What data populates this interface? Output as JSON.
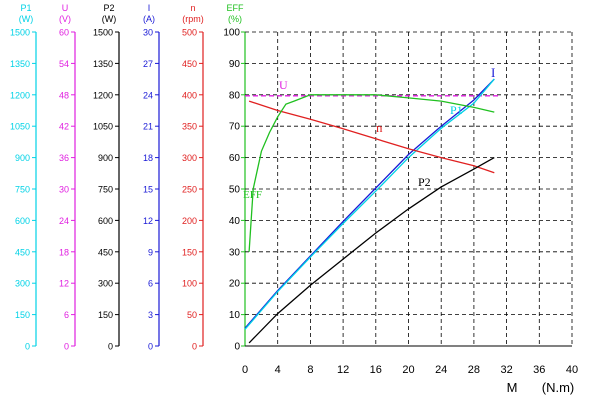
{
  "chart_data": {
    "type": "line",
    "title": "",
    "xlabel": "M",
    "xunit": "(N.m)",
    "x_ticks": [
      0,
      4,
      8,
      12,
      16,
      20,
      24,
      28,
      32,
      36,
      40
    ],
    "xlim": [
      0,
      40
    ],
    "grid": true,
    "axes": [
      {
        "key": "P1",
        "name": "P1",
        "unit": "(W)",
        "color": "#00d2e6",
        "min": 0,
        "max": 1500,
        "ticks": [
          0,
          150,
          300,
          450,
          600,
          750,
          900,
          1050,
          1200,
          1350,
          1500
        ]
      },
      {
        "key": "U",
        "name": "U",
        "unit": "(V)",
        "color": "#e020e0",
        "min": 0,
        "max": 60,
        "ticks": [
          0,
          6,
          12,
          18,
          24,
          30,
          36,
          42,
          48,
          54,
          60
        ]
      },
      {
        "key": "P2",
        "name": "P2",
        "unit": "(W)",
        "color": "#000000",
        "min": 0,
        "max": 1500,
        "ticks": [
          0,
          150,
          300,
          450,
          600,
          750,
          900,
          1050,
          1200,
          1350,
          1500
        ]
      },
      {
        "key": "I",
        "name": "I",
        "unit": "(A)",
        "color": "#1a1ad6",
        "min": 0,
        "max": 30,
        "ticks": [
          0,
          3,
          6,
          9,
          12,
          15,
          18,
          21,
          24,
          27,
          30
        ]
      },
      {
        "key": "n",
        "name": "n",
        "unit": "(rpm)",
        "color": "#e02020",
        "min": 0,
        "max": 500,
        "ticks": [
          0,
          50,
          100,
          150,
          200,
          250,
          300,
          350,
          400,
          450,
          500
        ]
      },
      {
        "key": "EFF",
        "name": "EFF",
        "unit": "(%)",
        "color": "#20c020",
        "min": 0,
        "max": 100,
        "ticks": [
          0,
          10,
          20,
          30,
          40,
          50,
          60,
          70,
          80,
          90,
          100
        ]
      }
    ],
    "series": [
      {
        "name": "U",
        "axis": "U",
        "color": "#e020e0",
        "dashed": true,
        "label": "U",
        "x": [
          0,
          31
        ],
        "y": [
          47.8,
          47.8
        ]
      },
      {
        "name": "I",
        "axis": "I",
        "color": "#1a1ad6",
        "label": "I",
        "x": [
          0,
          4,
          8,
          12,
          16,
          20,
          24,
          28,
          30.5
        ],
        "y": [
          1.7,
          5.3,
          8.6,
          11.9,
          15.1,
          18.3,
          21.0,
          23.5,
          25.5
        ]
      },
      {
        "name": "P1",
        "axis": "P1",
        "color": "#00d2e6",
        "label": "P1",
        "x": [
          0,
          4,
          8,
          12,
          16,
          20,
          24,
          28,
          30.5
        ],
        "y": [
          80,
          260,
          425,
          585,
          740,
          900,
          1040,
          1160,
          1275
        ]
      },
      {
        "name": "n",
        "axis": "n",
        "color": "#e02020",
        "label": "n",
        "x": [
          0.5,
          4,
          8,
          12,
          16,
          20,
          24,
          28,
          30.5
        ],
        "y": [
          390,
          375,
          361,
          346,
          330,
          314,
          300,
          287,
          276
        ]
      },
      {
        "name": "P2",
        "axis": "P2",
        "color": "#000000",
        "label": "P2",
        "x": [
          0.5,
          4,
          8,
          12,
          16,
          20,
          24,
          28,
          30.5
        ],
        "y": [
          15,
          155,
          290,
          415,
          540,
          655,
          760,
          845,
          900
        ]
      },
      {
        "name": "EFF",
        "axis": "EFF",
        "color": "#20c020",
        "label": "EFF",
        "x": [
          0.5,
          1,
          2,
          3,
          4,
          5,
          6,
          8,
          12,
          16,
          20,
          24,
          28,
          30.5
        ],
        "y": [
          30,
          50,
          62,
          68,
          73,
          77,
          78,
          80,
          80,
          80,
          79,
          78,
          76,
          74.5
        ]
      }
    ]
  }
}
